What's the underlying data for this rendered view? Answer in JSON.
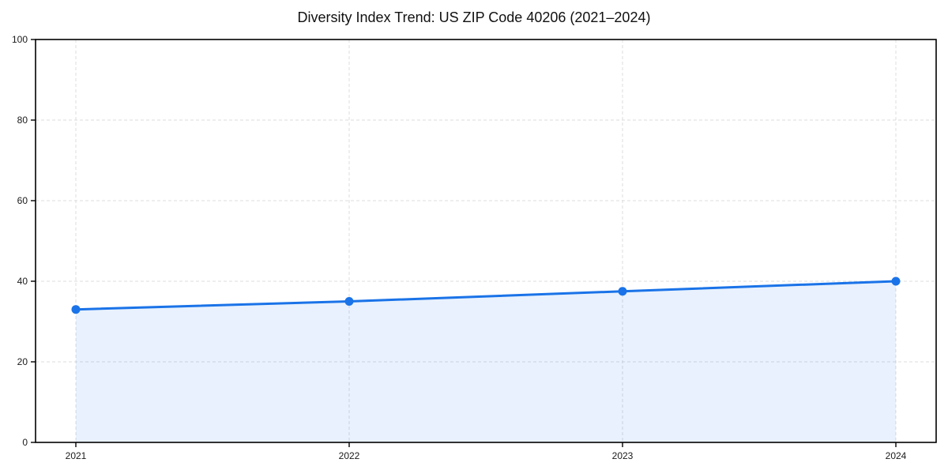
{
  "chart_data": {
    "type": "area",
    "title": "Diversity Index Trend: US ZIP Code 40206 (2021–2024)",
    "categories": [
      "2021",
      "2022",
      "2023",
      "2024"
    ],
    "series": [
      {
        "name": "Diversity Index",
        "values": [
          33,
          35,
          37.5,
          40
        ]
      }
    ],
    "xlabel": "",
    "ylabel": "",
    "ylim": [
      0,
      100
    ],
    "yticks": [
      0,
      20,
      40,
      60,
      80,
      100
    ],
    "grid": true,
    "grid_style": "dashed",
    "legend_position": "none",
    "colors": {
      "line": "#1a73e8",
      "marker": "#1a73e8",
      "fill": "#1a73e8",
      "fill_opacity": 0.1,
      "grid": "#dcdcdc",
      "axis": "#000000",
      "tick_label": "#1a1a1a",
      "background": "#ffffff"
    }
  }
}
